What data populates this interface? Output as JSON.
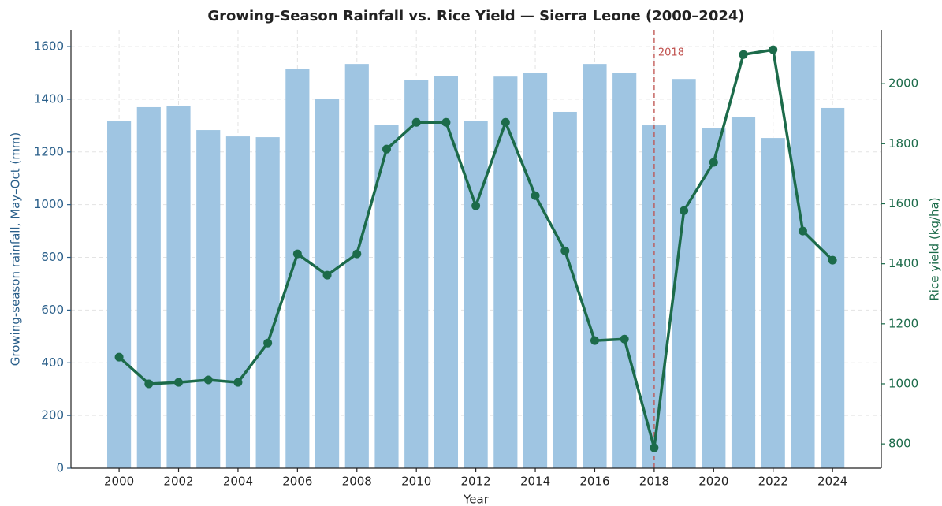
{
  "chart_data": {
    "type": "combo",
    "title": "Growing-Season Rainfall vs. Rice Yield — Sierra Leone (2000–2024)",
    "xlabel": "Year",
    "ylabel": "Growing-season rainfall, May–Oct (mm)",
    "y2label": "Rice yield (kg/ha)",
    "x": [
      2000,
      2001,
      2002,
      2003,
      2004,
      2005,
      2006,
      2007,
      2008,
      2009,
      2010,
      2011,
      2012,
      2013,
      2014,
      2015,
      2016,
      2017,
      2018,
      2019,
      2020,
      2021,
      2022,
      2023,
      2024
    ],
    "series": [
      {
        "name": "Growing-season rainfall",
        "type": "bar",
        "axis": "y",
        "color": "#9fc5e2",
        "values": [
          1316,
          1370,
          1373,
          1283,
          1259,
          1256,
          1516,
          1402,
          1534,
          1304,
          1474,
          1489,
          1319,
          1486,
          1501,
          1352,
          1534,
          1501,
          1301,
          1477,
          1292,
          1331,
          1253,
          1582,
          1367
        ]
      },
      {
        "name": "Rice yield",
        "type": "line",
        "axis": "y2",
        "color": "#1c6b4a",
        "values": [
          1089,
          1000,
          1005,
          1013,
          1005,
          1136,
          1433,
          1362,
          1433,
          1782,
          1871,
          1871,
          1593,
          1871,
          1627,
          1443,
          1144,
          1149,
          787,
          1577,
          1738,
          2097,
          2113,
          1509,
          1412
        ]
      }
    ],
    "xlim": [
      1998.38,
      2025.64
    ],
    "xticks": [
      2000,
      2002,
      2004,
      2006,
      2008,
      2010,
      2012,
      2014,
      2016,
      2018,
      2020,
      2022,
      2024
    ],
    "ylim": [
      0,
      1663
    ],
    "yticks": [
      0,
      200,
      400,
      600,
      800,
      1000,
      1200,
      1400,
      1600
    ],
    "y2lim": [
      719,
      2179
    ],
    "y2ticks": [
      800,
      1000,
      1200,
      1400,
      1600,
      1800,
      2000
    ],
    "grid": true,
    "annotations": [
      {
        "x": 2018,
        "label": "2018",
        "color": "#c0504d"
      }
    ]
  }
}
